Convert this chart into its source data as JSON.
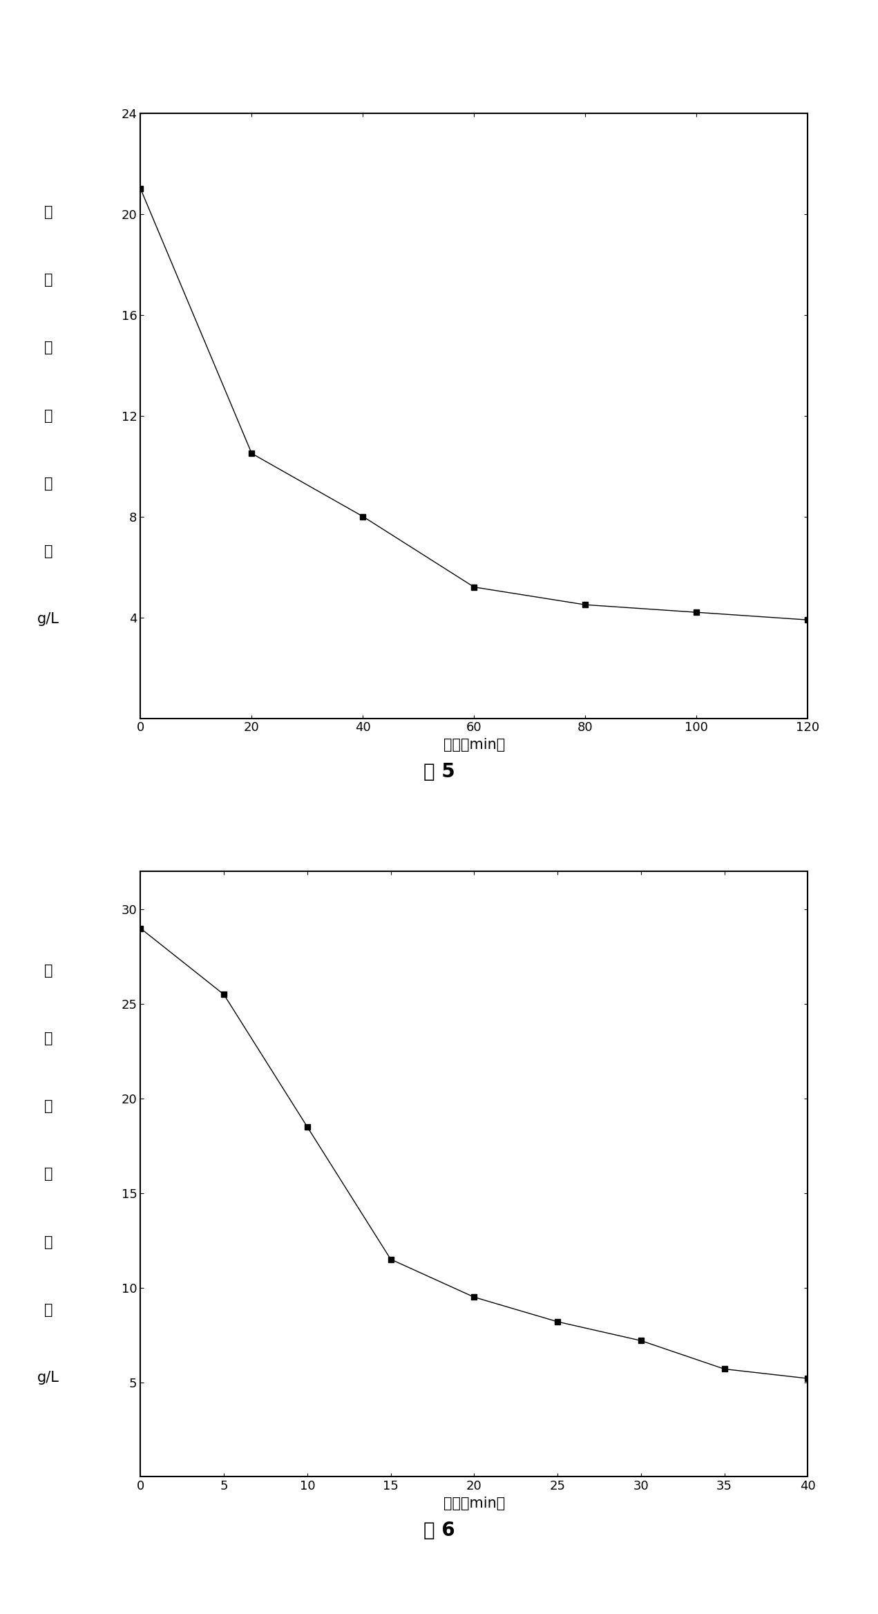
{
  "fig5": {
    "x": [
      0,
      20,
      40,
      60,
      80,
      100,
      120
    ],
    "y": [
      21.0,
      10.5,
      8.0,
      5.2,
      4.5,
      4.2,
      3.9
    ],
    "xlabel": "时间（min）",
    "ylabel_chars": [
      "碳",
      "酸",
      "氢",
      "镁",
      "含",
      "量",
      "g/L"
    ],
    "ylim": [
      0,
      24
    ],
    "xlim": [
      0,
      120
    ],
    "yticks": [
      4,
      8,
      12,
      16,
      20,
      24
    ],
    "xticks": [
      0,
      20,
      40,
      60,
      80,
      100,
      120
    ],
    "caption": "图 5"
  },
  "fig6": {
    "x": [
      0,
      5,
      10,
      15,
      20,
      25,
      30,
      35,
      40
    ],
    "y": [
      29.0,
      25.5,
      18.5,
      11.5,
      9.5,
      8.2,
      7.2,
      5.7,
      5.2
    ],
    "xlabel": "时间（min）",
    "ylabel_chars": [
      "碳",
      "酸",
      "氢",
      "镁",
      "含",
      "量",
      "g/L"
    ],
    "ylim": [
      0,
      32
    ],
    "xlim": [
      0,
      40
    ],
    "yticks": [
      5,
      10,
      15,
      20,
      25,
      30
    ],
    "xticks": [
      0,
      5,
      10,
      15,
      20,
      25,
      30,
      35,
      40
    ],
    "caption": "图 6"
  },
  "bg_color": "#ffffff",
  "line_color": "#000000",
  "marker": "s",
  "marker_size": 6,
  "marker_color": "#000000",
  "line_width": 1.0,
  "spine_linewidth": 1.5,
  "caption_fontsize": 20,
  "label_fontsize": 15,
  "tick_fontsize": 13,
  "ylabel_fontsize": 15
}
